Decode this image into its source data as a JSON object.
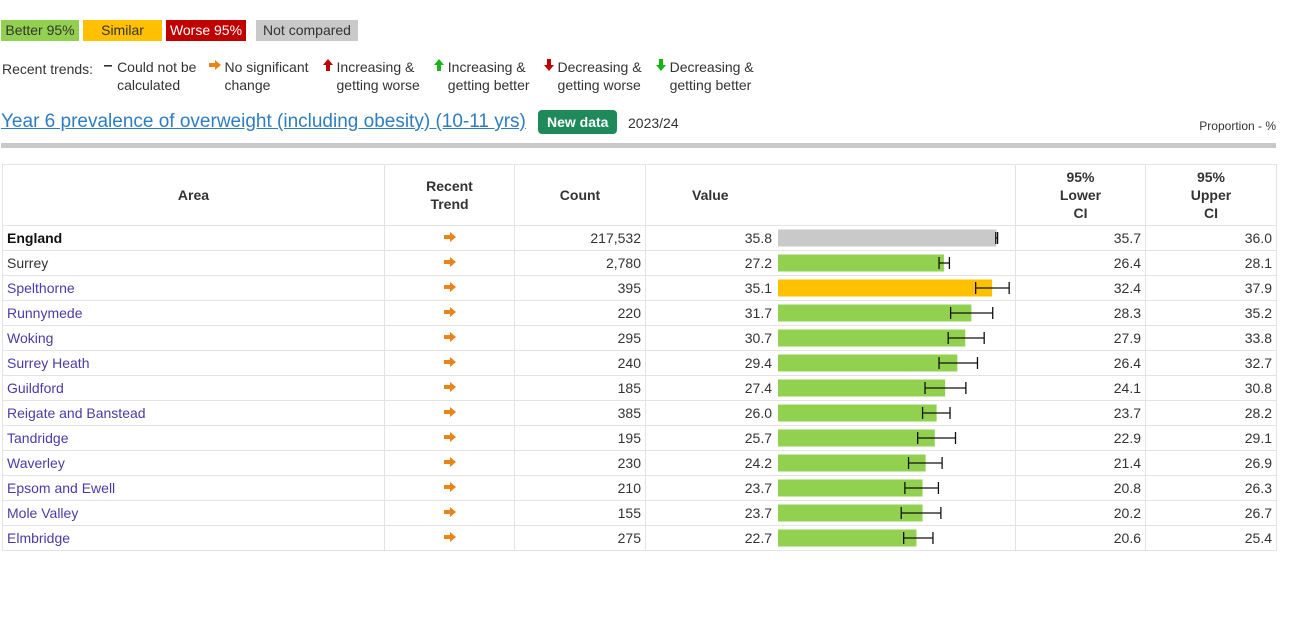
{
  "legend": {
    "better": "Better 95%",
    "similar": "Similar",
    "worse": "Worse 95%",
    "not_compared": "Not compared",
    "colors": {
      "better": "#92d050",
      "similar": "#ffc000",
      "worse": "#c00000",
      "not_compared": "#c9c9c9"
    }
  },
  "trends_legend": {
    "label": "Recent trends:",
    "items": [
      {
        "icon": "dash-icon",
        "text": "Could not be\ncalculated"
      },
      {
        "icon": "arrow-right-orange-icon",
        "text": "No significant\nchange"
      },
      {
        "icon": "arrow-up-red-icon",
        "text": "Increasing &\ngetting worse"
      },
      {
        "icon": "arrow-up-green-icon",
        "text": "Increasing &\ngetting better"
      },
      {
        "icon": "arrow-down-red-icon",
        "text": "Decreasing &\ngetting worse"
      },
      {
        "icon": "arrow-down-green-icon",
        "text": "Decreasing &\ngetting better"
      }
    ]
  },
  "indicator": {
    "title": "Year 6 prevalence of overweight (including obesity) (10-11 yrs)",
    "badge": "New data",
    "period": "2023/24",
    "unit": "Proportion - %"
  },
  "table": {
    "headers": {
      "area": "Area",
      "trend": "Recent\nTrend",
      "count": "Count",
      "value": "Value",
      "lower": "95%\nLower\nCI",
      "upper": "95%\nUpper\nCI"
    },
    "rows": [
      {
        "area": "England",
        "trend": "arrow-right-orange-icon",
        "count": "217,532",
        "value": "35.8",
        "lower": "35.7",
        "upper": "36.0",
        "status": "not_compared",
        "v": 35.8,
        "lo": 35.7,
        "hi": 36.0
      },
      {
        "area": "Surrey",
        "trend": "arrow-right-orange-icon",
        "count": "2,780",
        "value": "27.2",
        "lower": "26.4",
        "upper": "28.1",
        "status": "better",
        "v": 27.2,
        "lo": 26.4,
        "hi": 28.1
      },
      {
        "area": "Spelthorne",
        "trend": "arrow-right-orange-icon",
        "count": "395",
        "value": "35.1",
        "lower": "32.4",
        "upper": "37.9",
        "status": "similar",
        "v": 35.1,
        "lo": 32.4,
        "hi": 37.9
      },
      {
        "area": "Runnymede",
        "trend": "arrow-right-orange-icon",
        "count": "220",
        "value": "31.7",
        "lower": "28.3",
        "upper": "35.2",
        "status": "better",
        "v": 31.7,
        "lo": 28.3,
        "hi": 35.2
      },
      {
        "area": "Woking",
        "trend": "arrow-right-orange-icon",
        "count": "295",
        "value": "30.7",
        "lower": "27.9",
        "upper": "33.8",
        "status": "better",
        "v": 30.7,
        "lo": 27.9,
        "hi": 33.8
      },
      {
        "area": "Surrey Heath",
        "trend": "arrow-right-orange-icon",
        "count": "240",
        "value": "29.4",
        "lower": "26.4",
        "upper": "32.7",
        "status": "better",
        "v": 29.4,
        "lo": 26.4,
        "hi": 32.7
      },
      {
        "area": "Guildford",
        "trend": "arrow-right-orange-icon",
        "count": "185",
        "value": "27.4",
        "lower": "24.1",
        "upper": "30.8",
        "status": "better",
        "v": 27.4,
        "lo": 24.1,
        "hi": 30.8
      },
      {
        "area": "Reigate and Banstead",
        "trend": "arrow-right-orange-icon",
        "count": "385",
        "value": "26.0",
        "lower": "23.7",
        "upper": "28.2",
        "status": "better",
        "v": 26.0,
        "lo": 23.7,
        "hi": 28.2
      },
      {
        "area": "Tandridge",
        "trend": "arrow-right-orange-icon",
        "count": "195",
        "value": "25.7",
        "lower": "22.9",
        "upper": "29.1",
        "status": "better",
        "v": 25.7,
        "lo": 22.9,
        "hi": 29.1
      },
      {
        "area": "Waverley",
        "trend": "arrow-right-orange-icon",
        "count": "230",
        "value": "24.2",
        "lower": "21.4",
        "upper": "26.9",
        "status": "better",
        "v": 24.2,
        "lo": 21.4,
        "hi": 26.9
      },
      {
        "area": "Epsom and Ewell",
        "trend": "arrow-right-orange-icon",
        "count": "210",
        "value": "23.7",
        "lower": "20.8",
        "upper": "26.3",
        "status": "better",
        "v": 23.7,
        "lo": 20.8,
        "hi": 26.3
      },
      {
        "area": "Mole Valley",
        "trend": "arrow-right-orange-icon",
        "count": "155",
        "value": "23.7",
        "lower": "20.2",
        "upper": "26.7",
        "status": "better",
        "v": 23.7,
        "lo": 20.2,
        "hi": 26.7
      },
      {
        "area": "Elmbridge",
        "trend": "arrow-right-orange-icon",
        "count": "275",
        "value": "22.7",
        "lower": "20.6",
        "upper": "25.4",
        "status": "better",
        "v": 22.7,
        "lo": 20.6,
        "hi": 25.4
      }
    ]
  }
}
